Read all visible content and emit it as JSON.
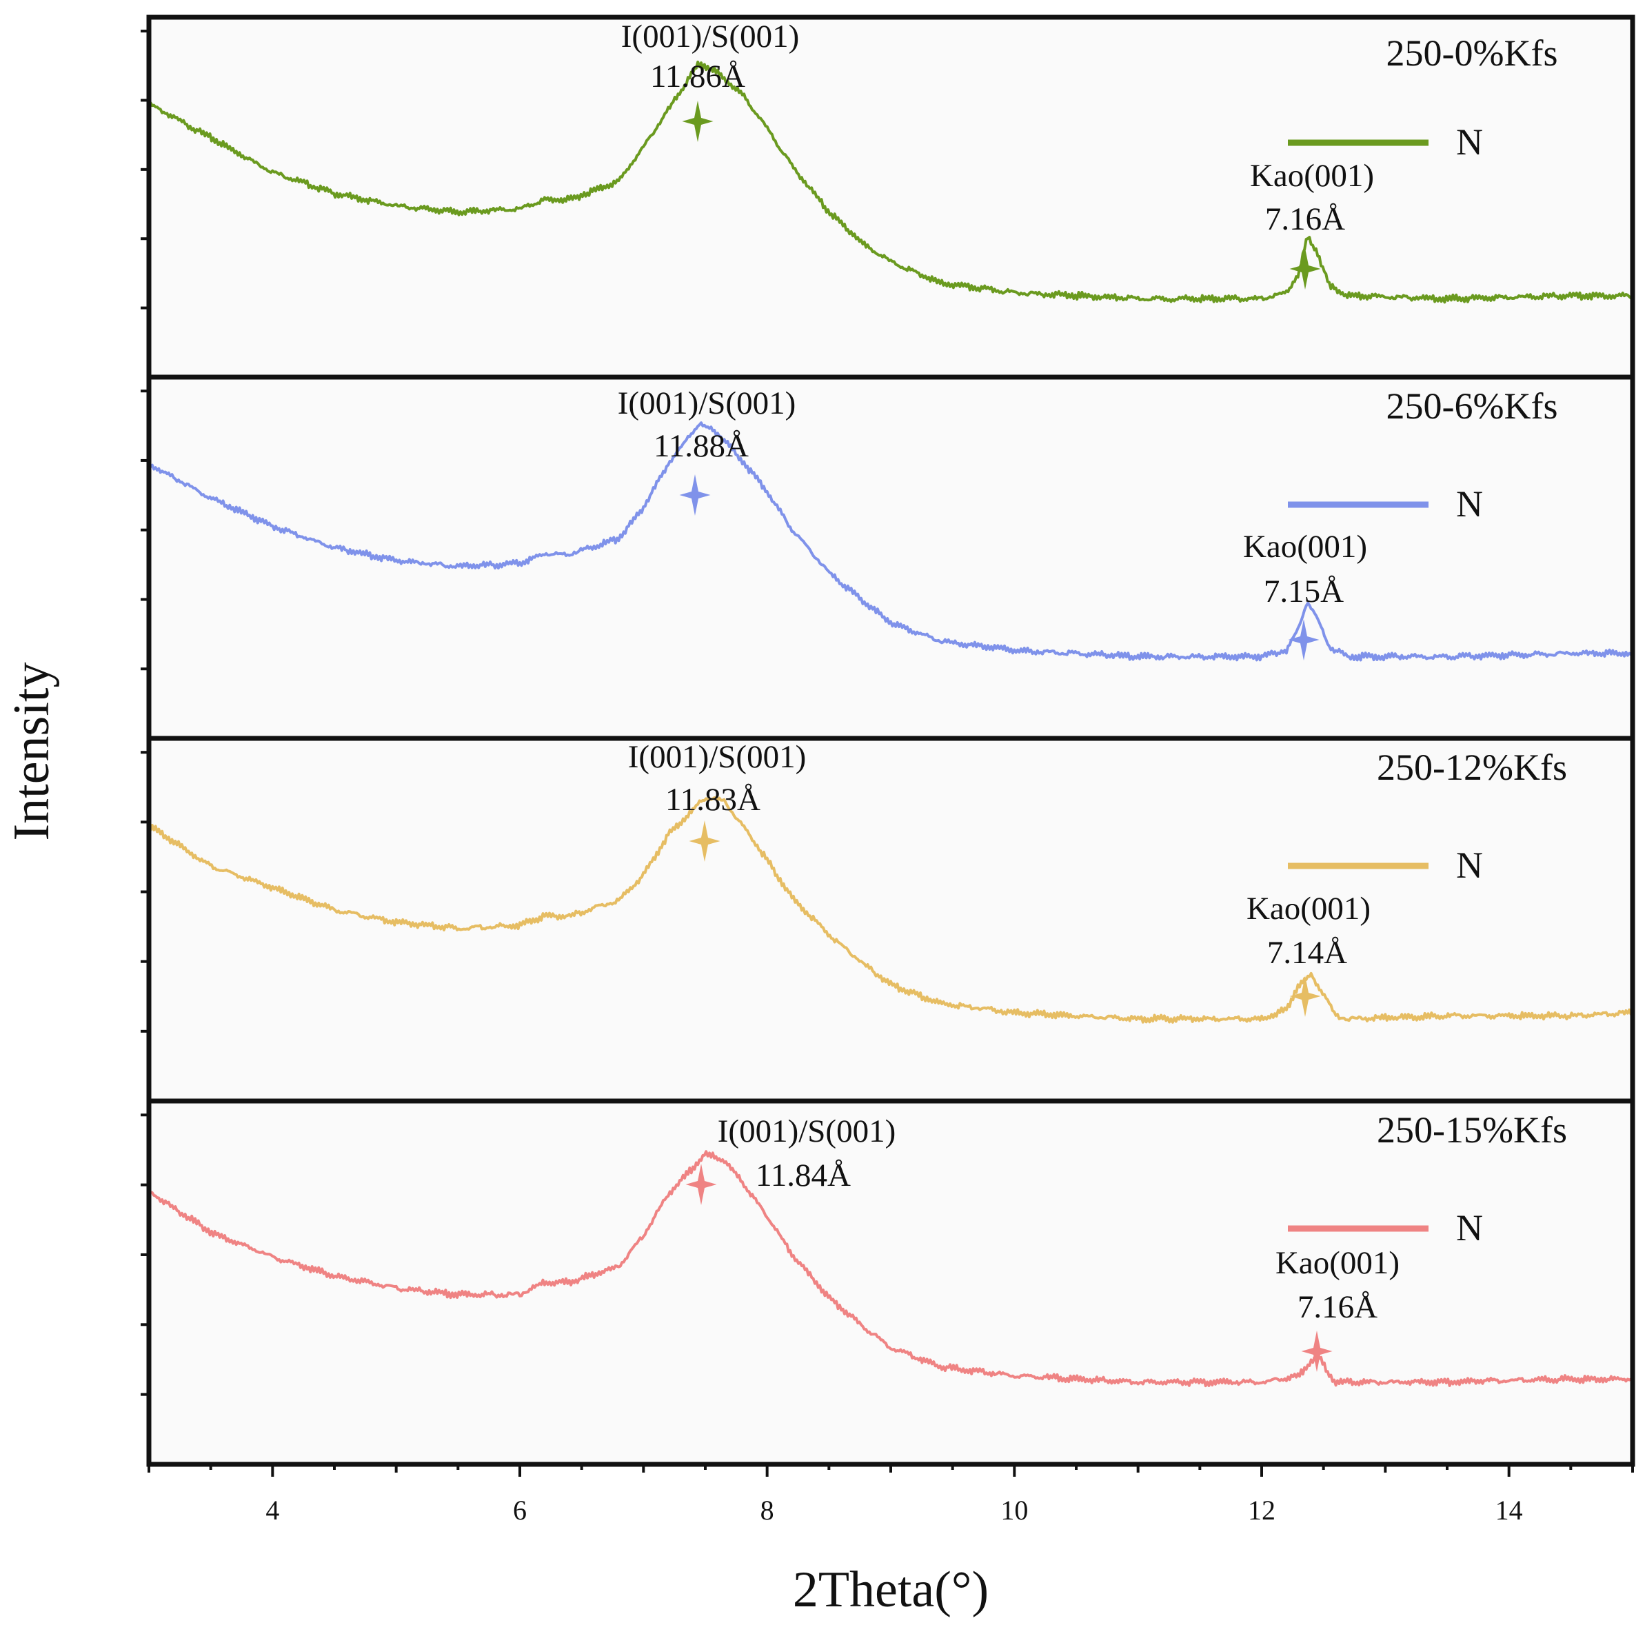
{
  "chart_data": {
    "type": "line",
    "xlabel": "2Theta(°)",
    "ylabel": "Intensity",
    "xlim": [
      3,
      15
    ],
    "xticks": [
      "4",
      "6",
      "8",
      "10",
      "12",
      "14"
    ],
    "legend_label": "N",
    "legend_position": "right of each panel",
    "panels": [
      {
        "title": "250-0%Kfs",
        "color": "#6a9a1f",
        "points": [
          [
            3.0,
            0.86
          ],
          [
            3.5,
            0.75
          ],
          [
            4.0,
            0.64
          ],
          [
            4.5,
            0.57
          ],
          [
            5.0,
            0.53
          ],
          [
            5.5,
            0.51
          ],
          [
            6.0,
            0.52
          ],
          [
            6.2,
            0.55
          ],
          [
            6.4,
            0.55
          ],
          [
            6.8,
            0.61
          ],
          [
            7.0,
            0.72
          ],
          [
            7.2,
            0.84
          ],
          [
            7.45,
            0.99
          ],
          [
            7.6,
            0.96
          ],
          [
            7.8,
            0.89
          ],
          [
            8.0,
            0.78
          ],
          [
            8.2,
            0.66
          ],
          [
            8.5,
            0.51
          ],
          [
            8.8,
            0.4
          ],
          [
            9.0,
            0.35
          ],
          [
            9.4,
            0.28
          ],
          [
            10.0,
            0.25
          ],
          [
            11.0,
            0.23
          ],
          [
            12.0,
            0.23
          ],
          [
            12.2,
            0.25
          ],
          [
            12.3,
            0.31
          ],
          [
            12.37,
            0.43
          ],
          [
            12.45,
            0.38
          ],
          [
            12.55,
            0.27
          ],
          [
            12.7,
            0.24
          ],
          [
            13.5,
            0.23
          ],
          [
            14.5,
            0.24
          ],
          [
            15.0,
            0.24
          ]
        ],
        "annotations": [
          {
            "label": "I(001)/S(001)",
            "d_spacing": "11.86Å",
            "x": 7.45
          },
          {
            "label": "Kao(001)",
            "d_spacing": "7.16Å",
            "x": 12.35
          }
        ]
      },
      {
        "title": "250-6%Kfs",
        "color": "#7f92ea",
        "points": [
          [
            3.0,
            0.86
          ],
          [
            3.5,
            0.75
          ],
          [
            4.0,
            0.66
          ],
          [
            4.5,
            0.59
          ],
          [
            5.0,
            0.55
          ],
          [
            5.5,
            0.53
          ],
          [
            6.0,
            0.54
          ],
          [
            6.2,
            0.57
          ],
          [
            6.4,
            0.57
          ],
          [
            6.8,
            0.62
          ],
          [
            7.0,
            0.72
          ],
          [
            7.2,
            0.86
          ],
          [
            7.45,
            0.99
          ],
          [
            7.6,
            0.96
          ],
          [
            7.8,
            0.87
          ],
          [
            8.0,
            0.77
          ],
          [
            8.2,
            0.65
          ],
          [
            8.5,
            0.51
          ],
          [
            8.8,
            0.41
          ],
          [
            9.0,
            0.35
          ],
          [
            9.4,
            0.29
          ],
          [
            10.0,
            0.26
          ],
          [
            11.0,
            0.24
          ],
          [
            12.0,
            0.24
          ],
          [
            12.2,
            0.26
          ],
          [
            12.3,
            0.33
          ],
          [
            12.37,
            0.42
          ],
          [
            12.45,
            0.36
          ],
          [
            12.55,
            0.27
          ],
          [
            12.7,
            0.24
          ],
          [
            13.5,
            0.24
          ],
          [
            14.5,
            0.25
          ],
          [
            15.0,
            0.25
          ]
        ],
        "annotations": [
          {
            "label": "I(001)/S(001)",
            "d_spacing": "11.88Å",
            "x": 7.4
          },
          {
            "label": "Kao(001)",
            "d_spacing": "7.15Å",
            "x": 12.35
          }
        ]
      },
      {
        "title": "250-12%Kfs",
        "color": "#e6bd63",
        "points": [
          [
            3.0,
            0.86
          ],
          [
            3.5,
            0.73
          ],
          [
            4.0,
            0.66
          ],
          [
            4.5,
            0.59
          ],
          [
            5.0,
            0.55
          ],
          [
            5.5,
            0.53
          ],
          [
            6.0,
            0.54
          ],
          [
            6.2,
            0.57
          ],
          [
            6.4,
            0.57
          ],
          [
            6.8,
            0.62
          ],
          [
            7.0,
            0.7
          ],
          [
            7.2,
            0.83
          ],
          [
            7.5,
            0.95
          ],
          [
            7.65,
            0.94
          ],
          [
            7.8,
            0.86
          ],
          [
            8.0,
            0.75
          ],
          [
            8.2,
            0.63
          ],
          [
            8.5,
            0.51
          ],
          [
            8.8,
            0.41
          ],
          [
            9.0,
            0.35
          ],
          [
            9.4,
            0.29
          ],
          [
            10.0,
            0.26
          ],
          [
            11.0,
            0.24
          ],
          [
            12.0,
            0.24
          ],
          [
            12.2,
            0.27
          ],
          [
            12.3,
            0.35
          ],
          [
            12.4,
            0.38
          ],
          [
            12.5,
            0.32
          ],
          [
            12.6,
            0.25
          ],
          [
            12.7,
            0.24
          ],
          [
            13.5,
            0.25
          ],
          [
            14.5,
            0.25
          ],
          [
            15.0,
            0.26
          ]
        ],
        "annotations": [
          {
            "label": "I(001)/S(001)",
            "d_spacing": "11.83Å",
            "x": 7.5
          },
          {
            "label": "Kao(001)",
            "d_spacing": "7.14Å",
            "x": 12.35
          }
        ]
      },
      {
        "title": "250-15%Kfs",
        "color": "#ef8383",
        "points": [
          [
            3.0,
            0.85
          ],
          [
            3.5,
            0.72
          ],
          [
            4.0,
            0.64
          ],
          [
            4.5,
            0.58
          ],
          [
            5.0,
            0.54
          ],
          [
            5.5,
            0.52
          ],
          [
            6.0,
            0.52
          ],
          [
            6.2,
            0.56
          ],
          [
            6.4,
            0.56
          ],
          [
            6.8,
            0.61
          ],
          [
            7.0,
            0.71
          ],
          [
            7.2,
            0.84
          ],
          [
            7.5,
            0.97
          ],
          [
            7.65,
            0.95
          ],
          [
            7.8,
            0.88
          ],
          [
            8.0,
            0.77
          ],
          [
            8.2,
            0.65
          ],
          [
            8.5,
            0.51
          ],
          [
            8.8,
            0.41
          ],
          [
            9.0,
            0.35
          ],
          [
            9.4,
            0.29
          ],
          [
            10.0,
            0.26
          ],
          [
            11.0,
            0.24
          ],
          [
            12.0,
            0.24
          ],
          [
            12.3,
            0.26
          ],
          [
            12.45,
            0.33
          ],
          [
            12.52,
            0.28
          ],
          [
            12.6,
            0.24
          ],
          [
            12.7,
            0.24
          ],
          [
            13.5,
            0.24
          ],
          [
            14.5,
            0.25
          ],
          [
            15.0,
            0.25
          ]
        ],
        "annotations": [
          {
            "label": "I(001)/S(001)",
            "d_spacing": "11.84Å",
            "x": 7.45
          },
          {
            "label": "Kao(001)",
            "d_spacing": "7.16Å",
            "x": 12.45
          }
        ]
      }
    ]
  }
}
